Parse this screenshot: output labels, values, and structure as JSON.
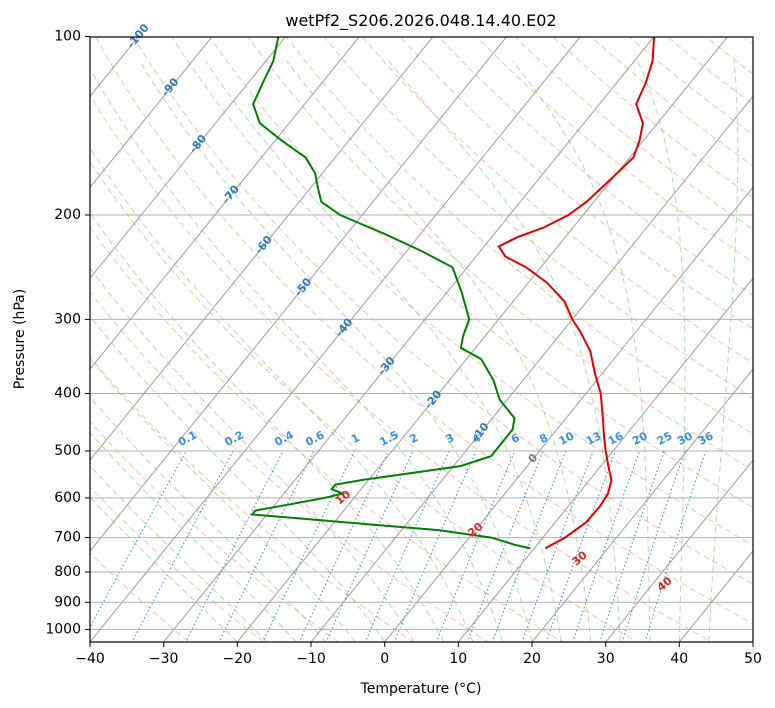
{
  "chart_data": {
    "type": "skew-t",
    "title": "wetPf2_S206.2026.048.14.40.E02",
    "xlabel": "Temperature (°C)",
    "ylabel": "Pressure (hPa)",
    "xlim": [
      -40,
      50
    ],
    "ylim": [
      1050,
      100
    ],
    "x_ticks": [
      -40,
      -30,
      -20,
      -10,
      0,
      10,
      20,
      30,
      40,
      50
    ],
    "y_ticks": [
      100,
      200,
      300,
      400,
      500,
      600,
      700,
      800,
      900,
      1000
    ],
    "colors": {
      "temperature": "#e00000",
      "dewpoint": "#008000",
      "isotherm": "#9e9e9e",
      "dry_adiabat": "#f4a582",
      "moist_adiabat": "#8fcc8f",
      "mixing_ratio": "#3a8ee6",
      "isotherm_label": "#2b7bb9",
      "moist_label": "#d62728",
      "grid": "#b0b0b0"
    },
    "isotherm_labels": [
      {
        "t": -100,
        "p": 100,
        "text": "-100"
      },
      {
        "t": -90,
        "p": 122,
        "text": "-90"
      },
      {
        "t": -80,
        "p": 152,
        "text": "-80"
      },
      {
        "t": -70,
        "p": 185,
        "text": "-70"
      },
      {
        "t": -60,
        "p": 225,
        "text": "-60"
      },
      {
        "t": -50,
        "p": 265,
        "text": "-50"
      },
      {
        "t": -40,
        "p": 310,
        "text": "-40"
      },
      {
        "t": -30,
        "p": 360,
        "text": "-30"
      },
      {
        "t": -20,
        "p": 410,
        "text": "-20"
      },
      {
        "t": -10,
        "p": 465,
        "text": "-10"
      },
      {
        "t": 0,
        "p": 515,
        "text": "0"
      }
    ],
    "mixing_ratio_lines": [
      {
        "w": 0.1,
        "text": "0.1"
      },
      {
        "w": 0.2,
        "text": "0.2"
      },
      {
        "w": 0.4,
        "text": "0.4"
      },
      {
        "w": 0.6,
        "text": "0.6"
      },
      {
        "w": 1,
        "text": "1"
      },
      {
        "w": 1.5,
        "text": "1.5"
      },
      {
        "w": 2,
        "text": "2"
      },
      {
        "w": 3,
        "text": "3"
      },
      {
        "w": 4,
        "text": "4"
      },
      {
        "w": 6,
        "text": "6"
      },
      {
        "w": 8,
        "text": "8"
      },
      {
        "w": 10,
        "text": "10"
      },
      {
        "w": 13,
        "text": "13"
      },
      {
        "w": 16,
        "text": "16"
      },
      {
        "w": 20,
        "text": "20"
      },
      {
        "w": 25,
        "text": "25"
      },
      {
        "w": 30,
        "text": "30"
      },
      {
        "w": 36,
        "text": "36"
      }
    ],
    "moist_adiabat_labels": [
      {
        "t": 10,
        "text": "10"
      },
      {
        "t": 20,
        "text": "20"
      },
      {
        "t": 30,
        "text": "30"
      },
      {
        "t": 40,
        "text": "40"
      }
    ],
    "temperature_profile": [
      {
        "p": 730,
        "t": 11.5
      },
      {
        "p": 700,
        "t": 13
      },
      {
        "p": 660,
        "t": 14.2
      },
      {
        "p": 620,
        "t": 14.3
      },
      {
        "p": 590,
        "t": 14
      },
      {
        "p": 560,
        "t": 13
      },
      {
        "p": 530,
        "t": 11
      },
      {
        "p": 500,
        "t": 9
      },
      {
        "p": 470,
        "t": 7
      },
      {
        "p": 440,
        "t": 5
      },
      {
        "p": 400,
        "t": 2
      },
      {
        "p": 370,
        "t": -1
      },
      {
        "p": 340,
        "t": -4
      },
      {
        "p": 315,
        "t": -7.5
      },
      {
        "p": 300,
        "t": -10
      },
      {
        "p": 280,
        "t": -13
      },
      {
        "p": 260,
        "t": -17.5
      },
      {
        "p": 245,
        "t": -22
      },
      {
        "p": 235,
        "t": -26
      },
      {
        "p": 226,
        "t": -28
      },
      {
        "p": 218,
        "t": -26.5
      },
      {
        "p": 210,
        "t": -24
      },
      {
        "p": 200,
        "t": -22
      },
      {
        "p": 190,
        "t": -21
      },
      {
        "p": 180,
        "t": -20.5
      },
      {
        "p": 170,
        "t": -20
      },
      {
        "p": 160,
        "t": -19.5
      },
      {
        "p": 150,
        "t": -20.5
      },
      {
        "p": 140,
        "t": -22
      },
      {
        "p": 130,
        "t": -25
      },
      {
        "p": 120,
        "t": -26
      },
      {
        "p": 110,
        "t": -27.5
      },
      {
        "p": 100,
        "t": -30
      }
    ],
    "dewpoint_profile": [
      {
        "p": 730,
        "t": 9.5
      },
      {
        "p": 720,
        "t": 7
      },
      {
        "p": 700,
        "t": 3
      },
      {
        "p": 680,
        "t": -5
      },
      {
        "p": 665,
        "t": -15
      },
      {
        "p": 650,
        "t": -25
      },
      {
        "p": 640,
        "t": -32
      },
      {
        "p": 630,
        "t": -32
      },
      {
        "p": 615,
        "t": -28
      },
      {
        "p": 600,
        "t": -24
      },
      {
        "p": 590,
        "t": -22
      },
      {
        "p": 580,
        "t": -24
      },
      {
        "p": 570,
        "t": -24
      },
      {
        "p": 560,
        "t": -21
      },
      {
        "p": 545,
        "t": -15
      },
      {
        "p": 530,
        "t": -9
      },
      {
        "p": 510,
        "t": -6
      },
      {
        "p": 490,
        "t": -6
      },
      {
        "p": 460,
        "t": -6
      },
      {
        "p": 440,
        "t": -7
      },
      {
        "p": 410,
        "t": -11
      },
      {
        "p": 380,
        "t": -14
      },
      {
        "p": 350,
        "t": -18
      },
      {
        "p": 335,
        "t": -22
      },
      {
        "p": 320,
        "t": -23
      },
      {
        "p": 300,
        "t": -24
      },
      {
        "p": 270,
        "t": -28
      },
      {
        "p": 245,
        "t": -32
      },
      {
        "p": 230,
        "t": -38
      },
      {
        "p": 215,
        "t": -45
      },
      {
        "p": 200,
        "t": -53
      },
      {
        "p": 190,
        "t": -57
      },
      {
        "p": 180,
        "t": -59
      },
      {
        "p": 170,
        "t": -61
      },
      {
        "p": 160,
        "t": -64
      },
      {
        "p": 150,
        "t": -69
      },
      {
        "p": 140,
        "t": -74
      },
      {
        "p": 130,
        "t": -77
      },
      {
        "p": 120,
        "t": -78
      },
      {
        "p": 110,
        "t": -79
      },
      {
        "p": 100,
        "t": -81
      }
    ]
  }
}
